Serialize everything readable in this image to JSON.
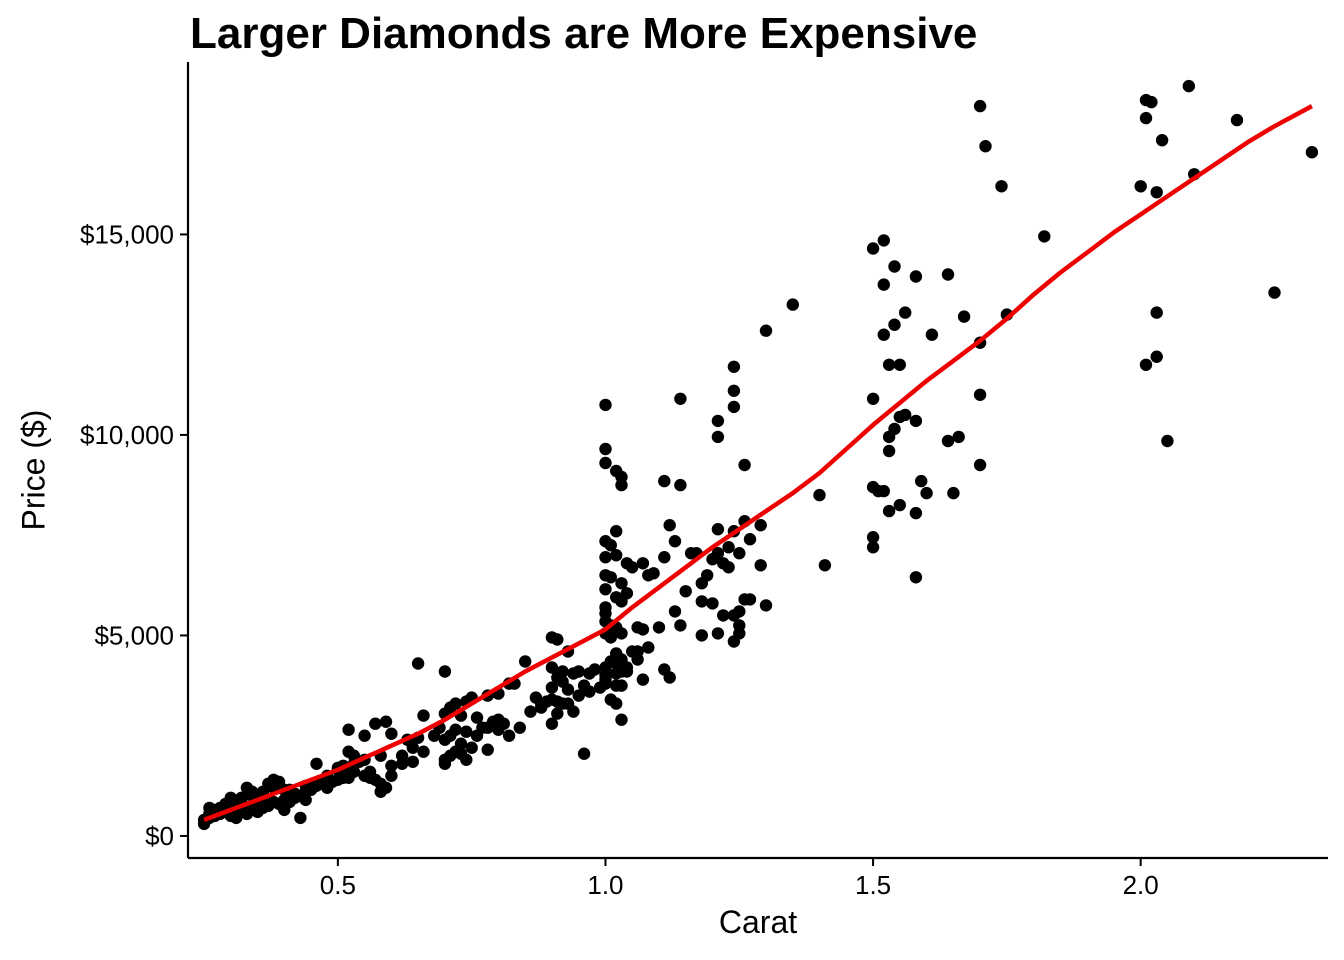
{
  "chart_data": {
    "type": "scatter",
    "title": "Larger Diamonds are More Expensive",
    "xlabel": "Carat",
    "ylabel": "Price ($)",
    "xlim": [
      0.22,
      2.35
    ],
    "ylim": [
      -550,
      19300
    ],
    "x_ticks": [
      {
        "value": 0.5,
        "label": "0.5"
      },
      {
        "value": 1.0,
        "label": "1.0"
      },
      {
        "value": 1.5,
        "label": "1.5"
      },
      {
        "value": 2.0,
        "label": "2.0"
      }
    ],
    "y_ticks": [
      {
        "value": 0,
        "label": "$0"
      },
      {
        "value": 5000,
        "label": "$5,000"
      },
      {
        "value": 10000,
        "label": "$10,000"
      },
      {
        "value": 15000,
        "label": "$15,000"
      }
    ],
    "grid": false,
    "point_color": "#000000",
    "trend_color": "#ee0000",
    "points": [
      [
        2.09,
        18700
      ],
      [
        2.01,
        18350
      ],
      [
        2.02,
        18300
      ],
      [
        1.7,
        18200
      ],
      [
        2.01,
        17900
      ],
      [
        2.18,
        17850
      ],
      [
        2.04,
        17350
      ],
      [
        1.71,
        17200
      ],
      [
        2.32,
        17050
      ],
      [
        2.1,
        16500
      ],
      [
        1.74,
        16200
      ],
      [
        2.0,
        16200
      ],
      [
        2.03,
        16050
      ],
      [
        1.82,
        14950
      ],
      [
        1.52,
        14850
      ],
      [
        1.5,
        14650
      ],
      [
        1.54,
        14200
      ],
      [
        1.58,
        13950
      ],
      [
        1.64,
        14000
      ],
      [
        1.52,
        13750
      ],
      [
        2.25,
        13550
      ],
      [
        1.35,
        13250
      ],
      [
        2.03,
        13050
      ],
      [
        1.56,
        13050
      ],
      [
        1.75,
        13000
      ],
      [
        1.67,
        12950
      ],
      [
        1.54,
        12750
      ],
      [
        1.3,
        12600
      ],
      [
        1.52,
        12500
      ],
      [
        1.61,
        12500
      ],
      [
        1.7,
        12300
      ],
      [
        2.03,
        11950
      ],
      [
        2.01,
        11750
      ],
      [
        1.24,
        11700
      ],
      [
        1.53,
        11750
      ],
      [
        1.55,
        11750
      ],
      [
        1.24,
        11100
      ],
      [
        1.14,
        10900
      ],
      [
        1.5,
        10900
      ],
      [
        1.7,
        11000
      ],
      [
        1.0,
        10750
      ],
      [
        1.24,
        10700
      ],
      [
        1.55,
        10450
      ],
      [
        1.56,
        10500
      ],
      [
        1.58,
        10350
      ],
      [
        1.21,
        10350
      ],
      [
        1.54,
        10150
      ],
      [
        1.53,
        9950
      ],
      [
        1.21,
        9950
      ],
      [
        1.66,
        9950
      ],
      [
        1.64,
        9850
      ],
      [
        2.05,
        9850
      ],
      [
        1.53,
        9600
      ],
      [
        1.0,
        9650
      ],
      [
        1.0,
        9300
      ],
      [
        1.7,
        9250
      ],
      [
        1.26,
        9250
      ],
      [
        1.02,
        9100
      ],
      [
        1.03,
        8950
      ],
      [
        1.03,
        8750
      ],
      [
        1.11,
        8850
      ],
      [
        1.14,
        8750
      ],
      [
        1.59,
        8850
      ],
      [
        1.6,
        8550
      ],
      [
        1.65,
        8550
      ],
      [
        1.4,
        8500
      ],
      [
        1.5,
        8700
      ],
      [
        1.51,
        8600
      ],
      [
        1.52,
        8600
      ],
      [
        1.53,
        8100
      ],
      [
        1.55,
        8250
      ],
      [
        1.58,
        8050
      ],
      [
        1.26,
        7850
      ],
      [
        1.29,
        7750
      ],
      [
        1.12,
        7750
      ],
      [
        1.21,
        7650
      ],
      [
        1.24,
        7600
      ],
      [
        1.02,
        7600
      ],
      [
        1.0,
        7350
      ],
      [
        1.01,
        7250
      ],
      [
        1.5,
        7450
      ],
      [
        1.5,
        7200
      ],
      [
        1.13,
        7350
      ],
      [
        1.16,
        7050
      ],
      [
        1.21,
        7050
      ],
      [
        1.25,
        7050
      ],
      [
        1.02,
        7000
      ],
      [
        1.0,
        6950
      ],
      [
        1.04,
        6800
      ],
      [
        1.05,
        6700
      ],
      [
        1.07,
        6800
      ],
      [
        1.11,
        6950
      ],
      [
        1.17,
        7050
      ],
      [
        1.2,
        6900
      ],
      [
        1.23,
        6700
      ],
      [
        1.29,
        6750
      ],
      [
        1.41,
        6750
      ],
      [
        1.58,
        6450
      ],
      [
        1.08,
        6500
      ],
      [
        1.09,
        6550
      ],
      [
        1.0,
        6500
      ],
      [
        1.01,
        6450
      ],
      [
        1.03,
        6300
      ],
      [
        1.0,
        6150
      ],
      [
        1.04,
        6050
      ],
      [
        1.02,
        5950
      ],
      [
        1.0,
        5700
      ],
      [
        1.03,
        5850
      ],
      [
        1.18,
        5850
      ],
      [
        1.2,
        5800
      ],
      [
        1.26,
        5900
      ],
      [
        1.27,
        5900
      ],
      [
        1.3,
        5750
      ],
      [
        1.25,
        5600
      ],
      [
        1.24,
        5500
      ],
      [
        1.22,
        5500
      ],
      [
        1.0,
        5550
      ],
      [
        1.0,
        5350
      ],
      [
        1.01,
        5250
      ],
      [
        1.02,
        5200
      ],
      [
        1.06,
        5200
      ],
      [
        1.07,
        5150
      ],
      [
        1.03,
        5050
      ],
      [
        1.0,
        5050
      ],
      [
        1.01,
        4950
      ],
      [
        1.14,
        5250
      ],
      [
        1.18,
        5000
      ],
      [
        1.21,
        5050
      ],
      [
        1.25,
        5050
      ],
      [
        1.24,
        4850
      ],
      [
        1.25,
        5250
      ],
      [
        1.02,
        4550
      ],
      [
        1.05,
        4600
      ],
      [
        1.06,
        4600
      ],
      [
        1.03,
        4400
      ],
      [
        1.01,
        4350
      ],
      [
        1.0,
        4200
      ],
      [
        1.0,
        4000
      ],
      [
        1.02,
        4050
      ],
      [
        1.03,
        4100
      ],
      [
        1.04,
        4100
      ],
      [
        1.11,
        4150
      ],
      [
        1.12,
        3950
      ],
      [
        1.07,
        3900
      ],
      [
        1.0,
        3800
      ],
      [
        1.02,
        3750
      ],
      [
        1.03,
        3750
      ],
      [
        1.01,
        3400
      ],
      [
        1.02,
        3300
      ],
      [
        1.03,
        2900
      ],
      [
        0.9,
        4950
      ],
      [
        0.91,
        4900
      ],
      [
        0.93,
        4600
      ],
      [
        0.9,
        4200
      ],
      [
        0.92,
        4100
      ],
      [
        0.94,
        4050
      ],
      [
        0.95,
        4100
      ],
      [
        0.96,
        3750
      ],
      [
        0.97,
        4050
      ],
      [
        0.98,
        4150
      ],
      [
        0.91,
        3950
      ],
      [
        0.92,
        3850
      ],
      [
        0.9,
        3700
      ],
      [
        0.93,
        3650
      ],
      [
        0.95,
        3500
      ],
      [
        0.9,
        3400
      ],
      [
        0.91,
        3350
      ],
      [
        0.92,
        3300
      ],
      [
        0.9,
        2800
      ],
      [
        0.96,
        2050
      ],
      [
        0.85,
        4350
      ],
      [
        0.83,
        3800
      ],
      [
        0.82,
        3800
      ],
      [
        0.8,
        3550
      ],
      [
        0.78,
        3500
      ],
      [
        0.75,
        3450
      ],
      [
        0.74,
        3350
      ],
      [
        0.72,
        3300
      ],
      [
        0.71,
        3200
      ],
      [
        0.7,
        3050
      ],
      [
        0.73,
        3000
      ],
      [
        0.76,
        2950
      ],
      [
        0.79,
        2850
      ],
      [
        0.81,
        2800
      ],
      [
        0.77,
        2700
      ],
      [
        0.72,
        2650
      ],
      [
        0.71,
        2500
      ],
      [
        0.7,
        2400
      ],
      [
        0.73,
        2300
      ],
      [
        0.75,
        2200
      ],
      [
        0.78,
        2150
      ],
      [
        0.72,
        2100
      ],
      [
        0.71,
        2000
      ],
      [
        0.7,
        1900
      ],
      [
        0.7,
        1800
      ],
      [
        0.74,
        1900
      ],
      [
        0.73,
        2050
      ],
      [
        0.8,
        2650
      ],
      [
        0.82,
        2500
      ],
      [
        0.84,
        2700
      ],
      [
        0.87,
        3450
      ],
      [
        0.88,
        3300
      ],
      [
        0.7,
        4100
      ],
      [
        0.65,
        4300
      ],
      [
        0.6,
        2550
      ],
      [
        0.59,
        2850
      ],
      [
        0.57,
        2800
      ],
      [
        0.55,
        2500
      ],
      [
        0.52,
        2650
      ],
      [
        0.5,
        1650
      ],
      [
        0.55,
        1900
      ],
      [
        0.58,
        2000
      ],
      [
        0.6,
        1750
      ],
      [
        0.62,
        1800
      ],
      [
        0.63,
        2400
      ],
      [
        0.64,
        1850
      ],
      [
        0.66,
        3000
      ],
      [
        0.65,
        2450
      ],
      [
        0.52,
        2100
      ],
      [
        0.53,
        2000
      ],
      [
        0.54,
        1850
      ],
      [
        0.51,
        1750
      ],
      [
        0.5,
        1700
      ],
      [
        0.53,
        1600
      ],
      [
        0.55,
        1500
      ],
      [
        0.56,
        1450
      ],
      [
        0.57,
        1400
      ],
      [
        0.58,
        1300
      ],
      [
        0.51,
        1550
      ],
      [
        0.52,
        1450
      ],
      [
        0.5,
        1400
      ],
      [
        0.48,
        1500
      ],
      [
        0.47,
        1300
      ],
      [
        0.46,
        1250
      ],
      [
        0.45,
        1150
      ],
      [
        0.44,
        1100
      ],
      [
        0.43,
        1000
      ],
      [
        0.44,
        900
      ],
      [
        0.42,
        950
      ],
      [
        0.41,
        850
      ],
      [
        0.4,
        900
      ],
      [
        0.39,
        800
      ],
      [
        0.38,
        850
      ],
      [
        0.37,
        750
      ],
      [
        0.36,
        700
      ],
      [
        0.35,
        800
      ],
      [
        0.34,
        650
      ],
      [
        0.33,
        700
      ],
      [
        0.32,
        600
      ],
      [
        0.31,
        650
      ],
      [
        0.3,
        700
      ],
      [
        0.3,
        500
      ],
      [
        0.29,
        600
      ],
      [
        0.28,
        550
      ],
      [
        0.27,
        500
      ],
      [
        0.26,
        450
      ],
      [
        0.25,
        400
      ],
      [
        0.25,
        300
      ],
      [
        0.26,
        700
      ],
      [
        0.28,
        700
      ],
      [
        0.3,
        850
      ],
      [
        0.32,
        950
      ],
      [
        0.34,
        1000
      ],
      [
        0.36,
        1100
      ],
      [
        0.38,
        1200
      ],
      [
        0.4,
        1150
      ],
      [
        0.39,
        1350
      ],
      [
        0.42,
        1000
      ],
      [
        0.33,
        550
      ],
      [
        0.31,
        450
      ],
      [
        0.35,
        600
      ],
      [
        0.37,
        1300
      ],
      [
        0.45,
        1200
      ],
      [
        0.46,
        1800
      ],
      [
        0.48,
        1200
      ],
      [
        0.49,
        1350
      ],
      [
        0.51,
        1450
      ],
      [
        0.53,
        1800
      ],
      [
        0.56,
        1600
      ],
      [
        0.58,
        1100
      ],
      [
        0.59,
        1200
      ],
      [
        0.6,
        1500
      ],
      [
        0.62,
        2000
      ],
      [
        0.64,
        2200
      ],
      [
        0.66,
        2100
      ],
      [
        0.68,
        2500
      ],
      [
        0.69,
        2700
      ],
      [
        0.74,
        2600
      ],
      [
        0.76,
        2500
      ],
      [
        0.78,
        2700
      ],
      [
        0.8,
        2900
      ],
      [
        0.86,
        3100
      ],
      [
        0.88,
        3200
      ],
      [
        0.89,
        3350
      ],
      [
        0.91,
        3050
      ],
      [
        0.93,
        3300
      ],
      [
        0.94,
        3100
      ],
      [
        0.97,
        3600
      ],
      [
        0.99,
        3700
      ],
      [
        1.0,
        3900
      ],
      [
        1.02,
        4300
      ],
      [
        1.04,
        4200
      ],
      [
        1.06,
        4400
      ],
      [
        1.08,
        4700
      ],
      [
        1.1,
        5200
      ],
      [
        1.13,
        5600
      ],
      [
        1.15,
        6100
      ],
      [
        1.18,
        6300
      ],
      [
        1.19,
        6500
      ],
      [
        1.22,
        6800
      ],
      [
        1.23,
        7200
      ],
      [
        1.27,
        7400
      ],
      [
        0.43,
        450
      ],
      [
        0.44,
        1250
      ],
      [
        0.36,
        1000
      ],
      [
        0.34,
        1100
      ],
      [
        0.32,
        850
      ],
      [
        0.3,
        950
      ],
      [
        0.29,
        800
      ],
      [
        0.27,
        650
      ],
      [
        0.26,
        550
      ],
      [
        0.4,
        650
      ],
      [
        0.41,
        1150
      ],
      [
        0.38,
        1400
      ],
      [
        0.42,
        1050
      ],
      [
        0.35,
        900
      ],
      [
        0.33,
        1200
      ]
    ],
    "trend": [
      [
        0.25,
        400
      ],
      [
        0.3,
        650
      ],
      [
        0.35,
        900
      ],
      [
        0.4,
        1150
      ],
      [
        0.45,
        1400
      ],
      [
        0.5,
        1650
      ],
      [
        0.55,
        1950
      ],
      [
        0.6,
        2250
      ],
      [
        0.65,
        2550
      ],
      [
        0.7,
        2900
      ],
      [
        0.75,
        3300
      ],
      [
        0.8,
        3700
      ],
      [
        0.85,
        4100
      ],
      [
        0.9,
        4450
      ],
      [
        0.95,
        4800
      ],
      [
        1.0,
        5150
      ],
      [
        1.05,
        5700
      ],
      [
        1.1,
        6200
      ],
      [
        1.15,
        6700
      ],
      [
        1.2,
        7200
      ],
      [
        1.25,
        7650
      ],
      [
        1.3,
        8100
      ],
      [
        1.35,
        8550
      ],
      [
        1.4,
        9050
      ],
      [
        1.45,
        9650
      ],
      [
        1.5,
        10250
      ],
      [
        1.55,
        10800
      ],
      [
        1.6,
        11350
      ],
      [
        1.65,
        11850
      ],
      [
        1.7,
        12350
      ],
      [
        1.75,
        12900
      ],
      [
        1.8,
        13500
      ],
      [
        1.85,
        14050
      ],
      [
        1.9,
        14550
      ],
      [
        1.95,
        15050
      ],
      [
        2.0,
        15500
      ],
      [
        2.05,
        15950
      ],
      [
        2.1,
        16400
      ],
      [
        2.15,
        16850
      ],
      [
        2.2,
        17300
      ],
      [
        2.25,
        17700
      ],
      [
        2.32,
        18200
      ]
    ]
  }
}
